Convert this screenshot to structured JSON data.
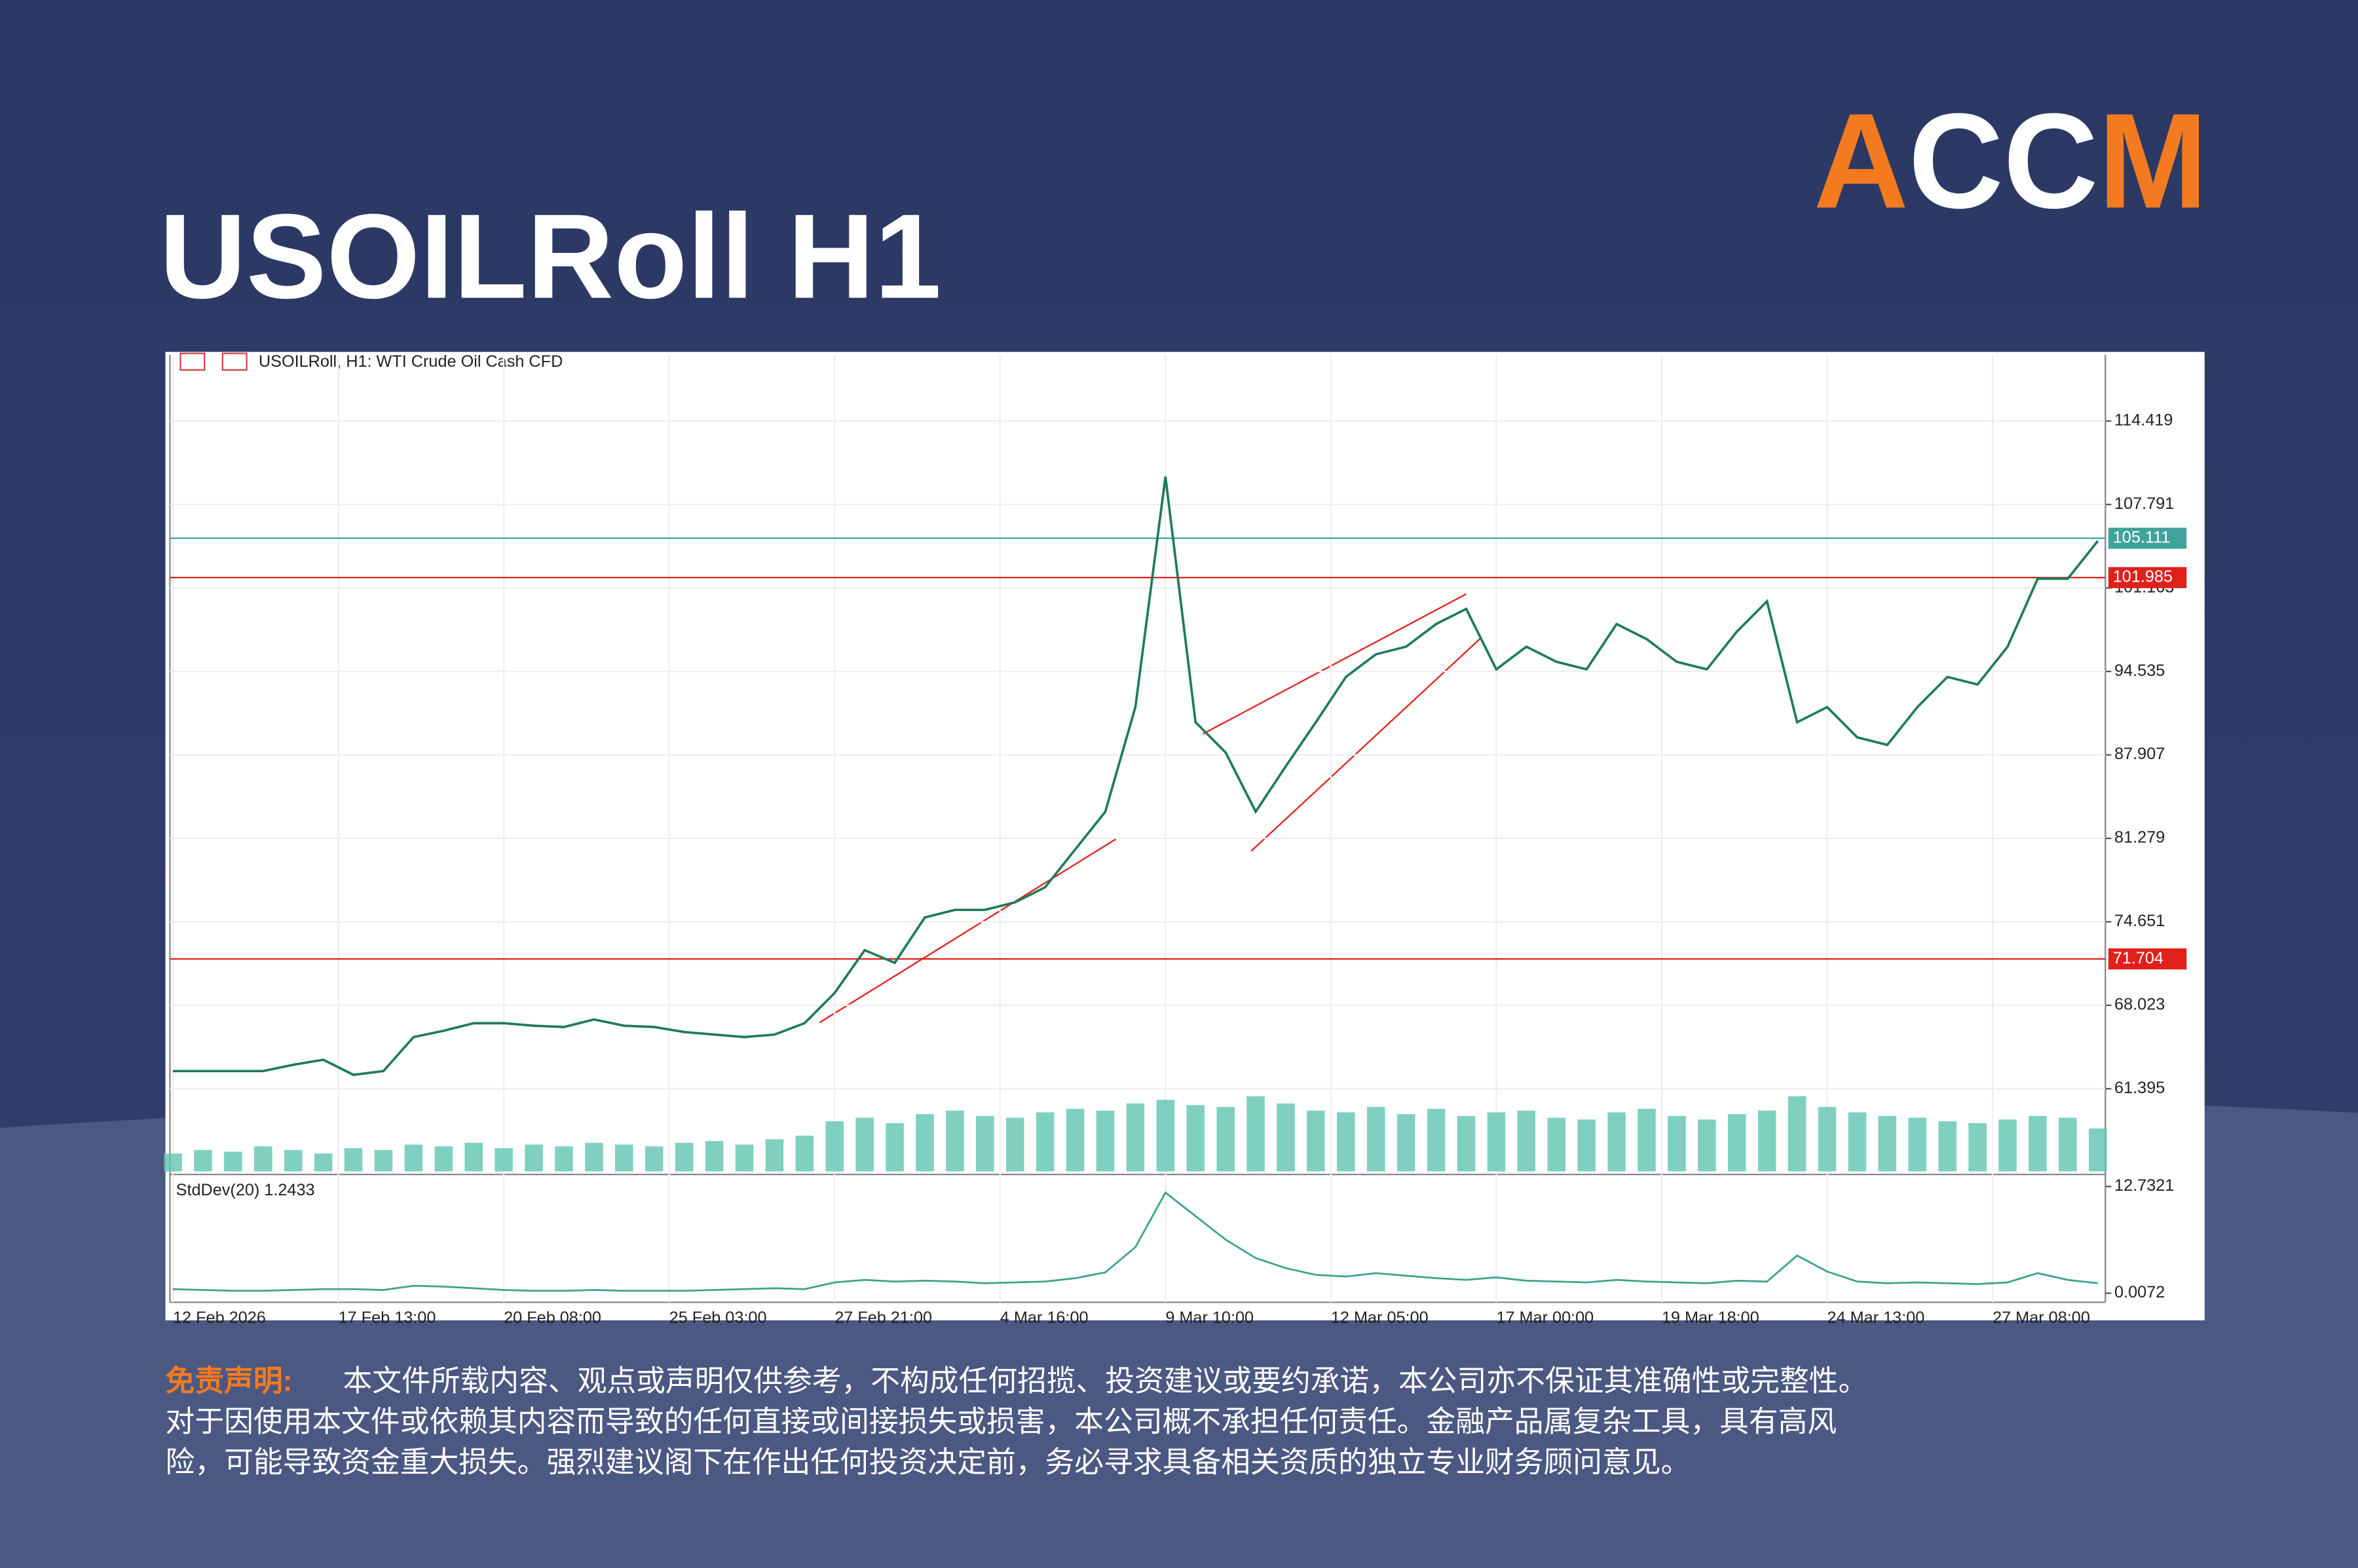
{
  "header": {
    "title": "USOILRoll H1",
    "logo": "ACCM"
  },
  "chart_data": {
    "type": "line",
    "title": "USOILRoll, H1:  WTI Crude Oil Cash CFD",
    "x": [
      0,
      1,
      2,
      3,
      4,
      5,
      6,
      7,
      8,
      9,
      10,
      11,
      12,
      13,
      14,
      15,
      16,
      17,
      18,
      19,
      20,
      21,
      22,
      23,
      24,
      25,
      26,
      27,
      28,
      29,
      30,
      31,
      32,
      33,
      34,
      35,
      36,
      37,
      38,
      39,
      40,
      41,
      42,
      43,
      44,
      45,
      46,
      47,
      48,
      49,
      50,
      51,
      52,
      53,
      54,
      55,
      56,
      57,
      58,
      59,
      60,
      61,
      62,
      63,
      64
    ],
    "xlim": [
      0,
      64
    ],
    "xticks": [
      {
        "value": 0,
        "label": "12 Feb 2026"
      },
      {
        "value": 5.5,
        "label": "17 Feb 13:00"
      },
      {
        "value": 11,
        "label": "20 Feb 08:00"
      },
      {
        "value": 16.5,
        "label": "25 Feb 03:00"
      },
      {
        "value": 22,
        "label": "27 Feb 21:00"
      },
      {
        "value": 27.5,
        "label": "4 Mar 16:00"
      },
      {
        "value": 33,
        "label": "9 Mar 10:00"
      },
      {
        "value": 38.5,
        "label": "12 Mar 05:00"
      },
      {
        "value": 44,
        "label": "17 Mar 00:00"
      },
      {
        "value": 49.5,
        "label": "19 Mar 18:00"
      },
      {
        "value": 55,
        "label": "24 Mar 13:00"
      },
      {
        "value": 60.5,
        "label": "27 Mar 08:00"
      }
    ],
    "ylim": [
      54.71,
      119.67
    ],
    "yticks": [
      61.395,
      68.023,
      74.651,
      81.279,
      87.907,
      94.535,
      101.163,
      107.791,
      114.419
    ],
    "series": [
      {
        "name": "USOILRoll",
        "color": "#1e7b5a",
        "values": [
          62.8,
          62.8,
          62.8,
          62.8,
          63.3,
          63.7,
          62.5,
          62.8,
          65.5,
          66.0,
          66.6,
          66.6,
          66.4,
          66.3,
          66.9,
          66.4,
          66.3,
          65.9,
          65.7,
          65.5,
          65.7,
          66.6,
          69.0,
          72.4,
          71.4,
          75.0,
          75.6,
          75.6,
          76.2,
          77.4,
          80.4,
          83.4,
          91.7,
          110.0,
          90.5,
          88.1,
          83.4,
          87.0,
          90.5,
          94.1,
          95.9,
          96.5,
          98.3,
          99.5,
          94.7,
          96.5,
          95.3,
          94.7,
          98.3,
          97.1,
          95.3,
          94.7,
          97.7,
          100.1,
          90.5,
          91.7,
          89.3,
          88.7,
          91.7,
          94.1,
          93.5,
          96.5,
          101.9,
          101.9,
          104.9
        ]
      }
    ],
    "volume": {
      "color": "#5fc4b0",
      "values": [
        10,
        12,
        11,
        14,
        12,
        10,
        13,
        12,
        15,
        14,
        16,
        13,
        15,
        14,
        16,
        15,
        14,
        16,
        17,
        15,
        18,
        20,
        28,
        30,
        27,
        32,
        34,
        31,
        30,
        33,
        35,
        34,
        38,
        40,
        37,
        36,
        42,
        38,
        34,
        33,
        36,
        32,
        35,
        31,
        33,
        34,
        30,
        29,
        33,
        35,
        31,
        29,
        32,
        34,
        42,
        36,
        33,
        31,
        30,
        28,
        27,
        29,
        31,
        30,
        24
      ]
    },
    "levels": [
      {
        "value": 105.111,
        "color": "#3fa39a"
      },
      {
        "value": 101.985,
        "color": "#e0201c"
      },
      {
        "value": 71.704,
        "color": "#e0201c"
      }
    ],
    "indicator": {
      "label": "StdDev(20) 1.2433",
      "color": "#3aa38a",
      "ylim": [
        0.0072,
        12.7321
      ],
      "yticks": [
        12.7321,
        0.0072
      ],
      "values": [
        0.5,
        0.4,
        0.3,
        0.3,
        0.4,
        0.5,
        0.5,
        0.4,
        0.9,
        0.8,
        0.6,
        0.4,
        0.3,
        0.3,
        0.4,
        0.3,
        0.3,
        0.3,
        0.4,
        0.5,
        0.6,
        0.5,
        1.3,
        1.6,
        1.4,
        1.5,
        1.4,
        1.2,
        1.3,
        1.4,
        1.8,
        2.5,
        5.5,
        12.0,
        9.2,
        6.4,
        4.2,
        3.0,
        2.2,
        2.0,
        2.4,
        2.1,
        1.8,
        1.6,
        1.9,
        1.5,
        1.4,
        1.3,
        1.6,
        1.4,
        1.3,
        1.2,
        1.5,
        1.4,
        4.5,
        2.6,
        1.4,
        1.2,
        1.3,
        1.2,
        1.1,
        1.3,
        2.4,
        1.6,
        1.2
      ]
    }
  },
  "disclaimer": {
    "heading": "免责声明:",
    "lines": [
      "本文件所载内容、观点或声明仅供参考，不构成任何招揽、投资建议或要约承诺，本公司亦不保证其准确性或完整性。",
      "对于因使用本文件或依赖其内容而导致的任何直接或间接损失或损害，本公司概不承担任何责任。金融产品属复杂工具，具有高风",
      "险，可能导致资金重大损失。强烈建议阁下在作出任何投资决定前，务必寻求具备相关资质的独立专业财务顾问意见。"
    ]
  }
}
